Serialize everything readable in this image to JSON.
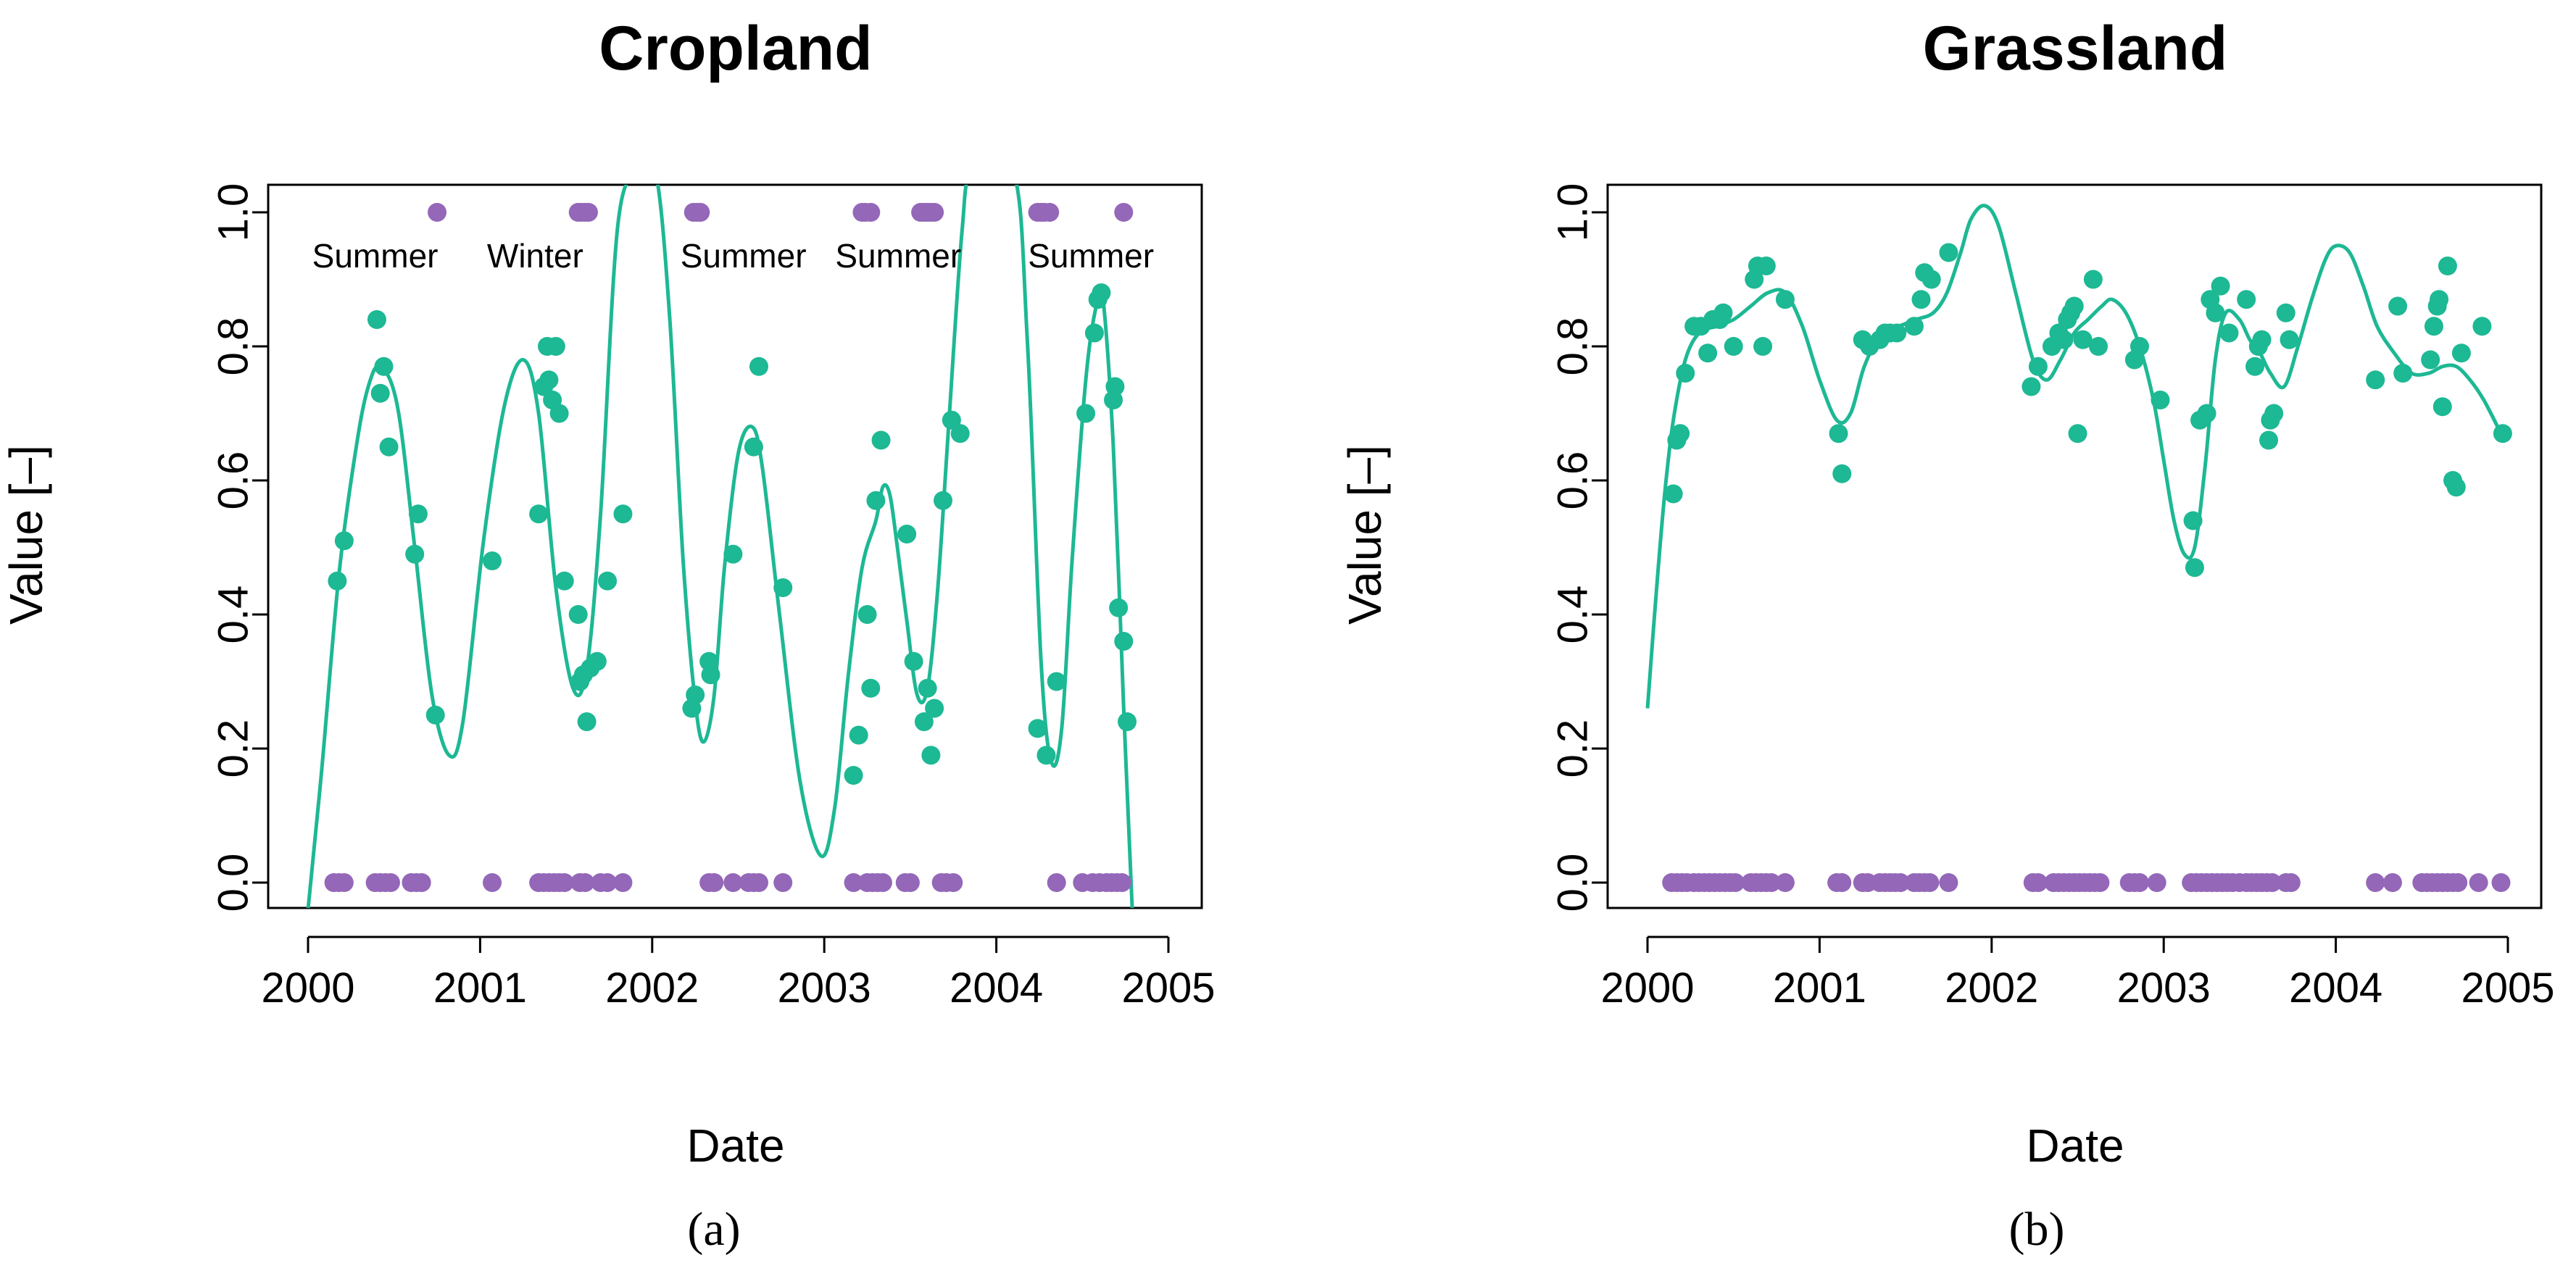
{
  "colors": {
    "series": "#1db894",
    "flag": "#9467b8",
    "axis": "#000000"
  },
  "chart_data": [
    {
      "type": "scatter",
      "panel": "(a)",
      "title": "Cropland",
      "xlabel": "Date",
      "ylabel": "Value [–]",
      "xlim": [
        2000,
        2005
      ],
      "ylim": [
        0,
        1
      ],
      "xticks": [
        "2000",
        "2001",
        "2002",
        "2003",
        "2004",
        "2005"
      ],
      "yticks": [
        "0.0",
        "0.2",
        "0.4",
        "0.6",
        "0.8",
        "1.0"
      ],
      "annotations": [
        {
          "text": "Summer",
          "x": 2000.39,
          "y": 0.935
        },
        {
          "text": "Winter",
          "x": 2001.32,
          "y": 0.935
        },
        {
          "text": "Summer",
          "x": 2002.53,
          "y": 0.935
        },
        {
          "text": "Summer",
          "x": 2003.43,
          "y": 0.935
        },
        {
          "text": "Summer",
          "x": 2004.55,
          "y": 0.935
        }
      ],
      "series": [
        {
          "name": "observations",
          "kind": "points",
          "x": [
            2000.17,
            2000.21,
            2000.4,
            2000.42,
            2000.44,
            2000.47,
            2000.62,
            2000.64,
            2000.74,
            2001.07,
            2001.34,
            2001.37,
            2001.39,
            2001.4,
            2001.42,
            2001.44,
            2001.46,
            2001.49,
            2001.57,
            2001.58,
            2001.6,
            2001.62,
            2001.64,
            2001.68,
            2001.74,
            2001.83,
            2002.23,
            2002.25,
            2002.33,
            2002.34,
            2002.47,
            2002.59,
            2002.62,
            2002.76,
            2003.17,
            2003.2,
            2003.25,
            2003.27,
            2003.3,
            2003.33,
            2003.48,
            2003.52,
            2003.58,
            2003.6,
            2003.62,
            2003.64,
            2003.69,
            2003.74,
            2003.79,
            2004.24,
            2004.29,
            2004.35,
            2004.52,
            2004.57,
            2004.59,
            2004.61,
            2004.68,
            2004.69,
            2004.71,
            2004.74,
            2004.76
          ],
          "y": [
            0.45,
            0.51,
            0.84,
            0.73,
            0.77,
            0.65,
            0.49,
            0.55,
            0.25,
            0.48,
            0.55,
            0.74,
            0.8,
            0.75,
            0.72,
            0.8,
            0.7,
            0.45,
            0.4,
            0.3,
            0.31,
            0.24,
            0.32,
            0.33,
            0.45,
            0.55,
            0.26,
            0.28,
            0.33,
            0.31,
            0.49,
            0.65,
            0.77,
            0.44,
            0.16,
            0.22,
            0.4,
            0.29,
            0.57,
            0.66,
            0.52,
            0.33,
            0.24,
            0.29,
            0.19,
            0.26,
            0.57,
            0.69,
            0.67,
            0.23,
            0.19,
            0.3,
            0.7,
            0.82,
            0.87,
            0.88,
            0.72,
            0.74,
            0.41,
            0.36,
            0.24
          ]
        },
        {
          "name": "smoothed fit",
          "kind": "line",
          "x": [
            2000.0,
            2000.08,
            2000.18,
            2000.28,
            2000.35,
            2000.42,
            2000.52,
            2000.62,
            2000.72,
            2000.82,
            2000.9,
            2001.02,
            2001.14,
            2001.25,
            2001.34,
            2001.44,
            2001.54,
            2001.62,
            2001.7,
            2001.8,
            2001.92,
            2002.02,
            2002.1,
            2002.18,
            2002.25,
            2002.3,
            2002.36,
            2002.42,
            2002.5,
            2002.58,
            2002.64,
            2002.74,
            2002.86,
            2002.98,
            2003.06,
            2003.14,
            2003.22,
            2003.3,
            2003.34,
            2003.38,
            2003.42,
            2003.48,
            2003.54,
            2003.6,
            2003.66,
            2003.72,
            2003.8,
            2003.86,
            2004.1,
            2004.18,
            2004.26,
            2004.32,
            2004.38,
            2004.44,
            2004.52,
            2004.58,
            2004.62,
            2004.68,
            2004.74,
            2004.79
          ],
          "y": [
            -0.04,
            0.17,
            0.46,
            0.65,
            0.74,
            0.77,
            0.71,
            0.5,
            0.28,
            0.19,
            0.24,
            0.51,
            0.71,
            0.78,
            0.7,
            0.44,
            0.29,
            0.32,
            0.55,
            0.98,
            1.06,
            1.06,
            0.85,
            0.48,
            0.27,
            0.21,
            0.28,
            0.47,
            0.64,
            0.68,
            0.62,
            0.4,
            0.15,
            0.04,
            0.11,
            0.31,
            0.47,
            0.54,
            0.59,
            0.58,
            0.51,
            0.39,
            0.28,
            0.29,
            0.44,
            0.67,
            0.97,
            1.06,
            1.06,
            0.81,
            0.33,
            0.18,
            0.23,
            0.48,
            0.75,
            0.86,
            0.87,
            0.65,
            0.26,
            -0.04
          ]
        },
        {
          "name": "season flags",
          "kind": "flags",
          "x_ones": [
            2000.75,
            2001.57,
            2001.59,
            2001.61,
            2001.63,
            2002.24,
            2002.26,
            2002.28,
            2003.22,
            2003.24,
            2003.27,
            2003.56,
            2003.58,
            2003.6,
            2003.62,
            2003.64,
            2004.24,
            2004.26,
            2004.28,
            2004.31,
            2004.74
          ],
          "x_zeros": [
            2000.15,
            2000.18,
            2000.21,
            2000.39,
            2000.42,
            2000.45,
            2000.48,
            2000.6,
            2000.63,
            2000.66,
            2001.07,
            2001.34,
            2001.37,
            2001.4,
            2001.43,
            2001.46,
            2001.49,
            2001.58,
            2001.61,
            2001.7,
            2001.74,
            2001.83,
            2002.33,
            2002.36,
            2002.47,
            2002.56,
            2002.59,
            2002.62,
            2002.76,
            2003.17,
            2003.25,
            2003.28,
            2003.31,
            2003.34,
            2003.47,
            2003.5,
            2003.68,
            2003.71,
            2003.75,
            2004.35,
            2004.5,
            2004.56,
            2004.6,
            2004.64,
            2004.67,
            2004.7,
            2004.73
          ]
        }
      ]
    },
    {
      "type": "scatter",
      "panel": "(b)",
      "title": "Grassland",
      "xlabel": "Date",
      "ylabel": "Value [–]",
      "xlim": [
        2000,
        2005
      ],
      "ylim": [
        0,
        1
      ],
      "xticks": [
        "2000",
        "2001",
        "2002",
        "2003",
        "2004",
        "2005"
      ],
      "yticks": [
        "0.0",
        "0.2",
        "0.4",
        "0.6",
        "0.8",
        "1.0"
      ],
      "annotations": [],
      "series": [
        {
          "name": "observations",
          "kind": "points",
          "x": [
            2000.15,
            2000.17,
            2000.19,
            2000.22,
            2000.27,
            2000.31,
            2000.35,
            2000.38,
            2000.42,
            2000.44,
            2000.5,
            2000.62,
            2000.64,
            2000.67,
            2000.69,
            2000.8,
            2001.11,
            2001.13,
            2001.25,
            2001.29,
            2001.35,
            2001.38,
            2001.41,
            2001.45,
            2001.55,
            2001.59,
            2001.61,
            2001.65,
            2001.75,
            2002.23,
            2002.27,
            2002.35,
            2002.39,
            2002.42,
            2002.44,
            2002.46,
            2002.48,
            2002.5,
            2002.53,
            2002.59,
            2002.62,
            2002.83,
            2002.86,
            2002.98,
            2003.17,
            2003.18,
            2003.21,
            2003.25,
            2003.27,
            2003.3,
            2003.33,
            2003.38,
            2003.48,
            2003.53,
            2003.55,
            2003.57,
            2003.61,
            2003.62,
            2003.64,
            2003.71,
            2003.73,
            2004.23,
            2004.36,
            2004.39,
            2004.55,
            2004.57,
            2004.59,
            2004.6,
            2004.62,
            2004.65,
            2004.68,
            2004.7,
            2004.73,
            2004.85,
            2004.97
          ],
          "y": [
            0.58,
            0.66,
            0.67,
            0.76,
            0.83,
            0.83,
            0.79,
            0.84,
            0.84,
            0.85,
            0.8,
            0.9,
            0.92,
            0.8,
            0.92,
            0.87,
            0.67,
            0.61,
            0.81,
            0.8,
            0.81,
            0.82,
            0.82,
            0.82,
            0.83,
            0.87,
            0.91,
            0.9,
            0.94,
            0.74,
            0.77,
            0.8,
            0.82,
            0.81,
            0.84,
            0.85,
            0.86,
            0.67,
            0.81,
            0.9,
            0.8,
            0.78,
            0.8,
            0.72,
            0.54,
            0.47,
            0.69,
            0.7,
            0.87,
            0.85,
            0.89,
            0.82,
            0.87,
            0.77,
            0.8,
            0.81,
            0.66,
            0.69,
            0.7,
            0.85,
            0.81,
            0.75,
            0.86,
            0.76,
            0.78,
            0.83,
            0.86,
            0.87,
            0.71,
            0.92,
            0.6,
            0.59,
            0.79,
            0.83,
            0.67
          ]
        },
        {
          "name": "smoothed fit",
          "kind": "line",
          "x": [
            2000.0,
            2000.05,
            2000.1,
            2000.15,
            2000.22,
            2000.3,
            2000.4,
            2000.5,
            2000.6,
            2000.7,
            2000.8,
            2000.9,
            2001.0,
            2001.1,
            2001.18,
            2001.26,
            2001.36,
            2001.46,
            2001.56,
            2001.66,
            2001.74,
            2001.82,
            2001.88,
            2001.96,
            2002.04,
            2002.14,
            2002.24,
            2002.32,
            2002.4,
            2002.48,
            2002.56,
            2002.64,
            2002.7,
            2002.78,
            2002.86,
            2002.94,
            2003.0,
            2003.06,
            2003.12,
            2003.18,
            2003.24,
            2003.3,
            2003.36,
            2003.44,
            2003.5,
            2003.56,
            2003.62,
            2003.7,
            2003.78,
            2003.86,
            2003.94,
            2004.0,
            2004.08,
            2004.16,
            2004.24,
            2004.34,
            2004.44,
            2004.54,
            2004.62,
            2004.7,
            2004.78,
            2004.86,
            2004.96
          ],
          "y": [
            0.26,
            0.43,
            0.58,
            0.69,
            0.78,
            0.82,
            0.83,
            0.84,
            0.86,
            0.88,
            0.88,
            0.83,
            0.75,
            0.69,
            0.7,
            0.77,
            0.82,
            0.83,
            0.84,
            0.85,
            0.88,
            0.94,
            0.99,
            1.01,
            0.98,
            0.88,
            0.78,
            0.75,
            0.78,
            0.82,
            0.84,
            0.86,
            0.87,
            0.85,
            0.8,
            0.72,
            0.63,
            0.54,
            0.49,
            0.5,
            0.62,
            0.78,
            0.85,
            0.84,
            0.81,
            0.79,
            0.76,
            0.74,
            0.8,
            0.87,
            0.93,
            0.95,
            0.94,
            0.89,
            0.83,
            0.79,
            0.76,
            0.76,
            0.77,
            0.77,
            0.75,
            0.72,
            0.67
          ]
        },
        {
          "name": "season flags",
          "kind": "flags",
          "x_ones": [],
          "x_zeros": [
            2000.14,
            2000.17,
            2000.2,
            2000.23,
            2000.27,
            2000.3,
            2000.33,
            2000.36,
            2000.39,
            2000.42,
            2000.45,
            2000.48,
            2000.51,
            2000.6,
            2000.63,
            2000.66,
            2000.69,
            2000.72,
            2000.8,
            2001.1,
            2001.13,
            2001.25,
            2001.28,
            2001.35,
            2001.38,
            2001.41,
            2001.44,
            2001.47,
            2001.55,
            2001.58,
            2001.61,
            2001.64,
            2001.75,
            2002.24,
            2002.27,
            2002.36,
            2002.39,
            2002.42,
            2002.45,
            2002.48,
            2002.51,
            2002.54,
            2002.57,
            2002.6,
            2002.63,
            2002.8,
            2002.83,
            2002.86,
            2002.96,
            2003.16,
            2003.19,
            2003.22,
            2003.25,
            2003.28,
            2003.31,
            2003.34,
            2003.37,
            2003.4,
            2003.44,
            2003.48,
            2003.51,
            2003.54,
            2003.57,
            2003.6,
            2003.63,
            2003.71,
            2003.74,
            2004.23,
            2004.33,
            2004.5,
            2004.53,
            2004.56,
            2004.59,
            2004.62,
            2004.65,
            2004.68,
            2004.71,
            2004.83,
            2004.96
          ]
        }
      ]
    }
  ]
}
